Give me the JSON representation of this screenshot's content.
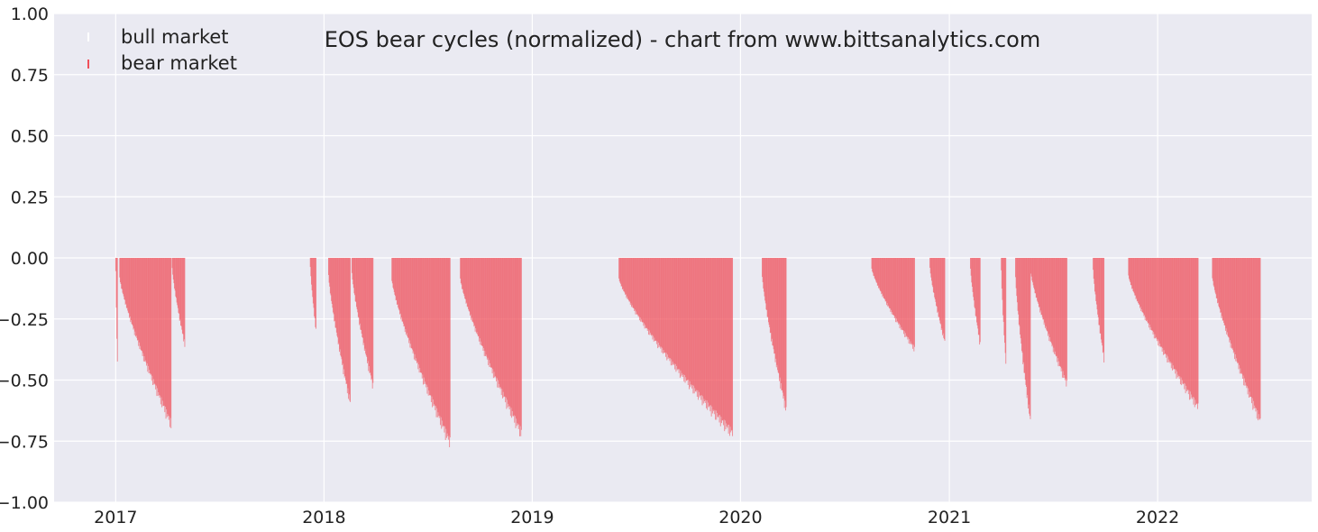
{
  "chart_data": {
    "type": "bar",
    "title": "EOS bear cycles (normalized)  - chart from www.bittsanalytics.com",
    "xlabel": "",
    "ylabel": "",
    "ylim": [
      -1.0,
      1.0
    ],
    "xlim": [
      "2016-09-15",
      "2022-09-28"
    ],
    "x_ticks": [
      "2017",
      "2018",
      "2019",
      "2020",
      "2021",
      "2022"
    ],
    "y_ticks": [
      "1.00",
      "0.75",
      "0.50",
      "0.25",
      "0.00",
      "−0.25",
      "−0.50",
      "−0.75",
      "−1.00"
    ],
    "grid": true,
    "legend_position": "top-left",
    "series": [
      {
        "name": "bull market",
        "color": "#ffffff",
        "values": []
      },
      {
        "name": "bear market",
        "color": "#f0505a",
        "bear_cycles": [
          {
            "start": "2017-01-01",
            "end": "2017-01-04",
            "min": -0.45
          },
          {
            "start": "2017-01-08",
            "end": "2017-04-08",
            "min": -0.71
          },
          {
            "start": "2017-04-10",
            "end": "2017-05-02",
            "min": -0.37
          },
          {
            "start": "2017-12-08",
            "end": "2017-12-18",
            "min": -0.31
          },
          {
            "start": "2018-01-09",
            "end": "2018-02-16",
            "min": -0.62
          },
          {
            "start": "2018-02-19",
            "end": "2018-03-28",
            "min": -0.55
          },
          {
            "start": "2018-04-30",
            "end": "2018-08-10",
            "min": -0.79
          },
          {
            "start": "2018-08-28",
            "end": "2018-12-13",
            "min": -0.75
          },
          {
            "start": "2019-06-02",
            "end": "2019-12-18",
            "min": -0.75
          },
          {
            "start": "2020-02-08",
            "end": "2020-03-21",
            "min": -0.65
          },
          {
            "start": "2020-08-18",
            "end": "2020-11-01",
            "min": -0.39
          },
          {
            "start": "2020-11-28",
            "end": "2020-12-24",
            "min": -0.36
          },
          {
            "start": "2021-02-07",
            "end": "2021-02-24",
            "min": -0.37
          },
          {
            "start": "2021-04-02",
            "end": "2021-04-10",
            "min": -0.45
          },
          {
            "start": "2021-04-27",
            "end": "2021-05-23",
            "min": -0.7
          },
          {
            "start": "2021-05-24",
            "end": "2021-07-26",
            "min": -0.54
          },
          {
            "start": "2021-09-10",
            "end": "2021-09-29",
            "min": -0.43
          },
          {
            "start": "2021-11-11",
            "end": "2022-03-13",
            "min": -0.64
          },
          {
            "start": "2022-04-07",
            "end": "2022-06-30",
            "min": -0.7
          }
        ]
      }
    ]
  }
}
